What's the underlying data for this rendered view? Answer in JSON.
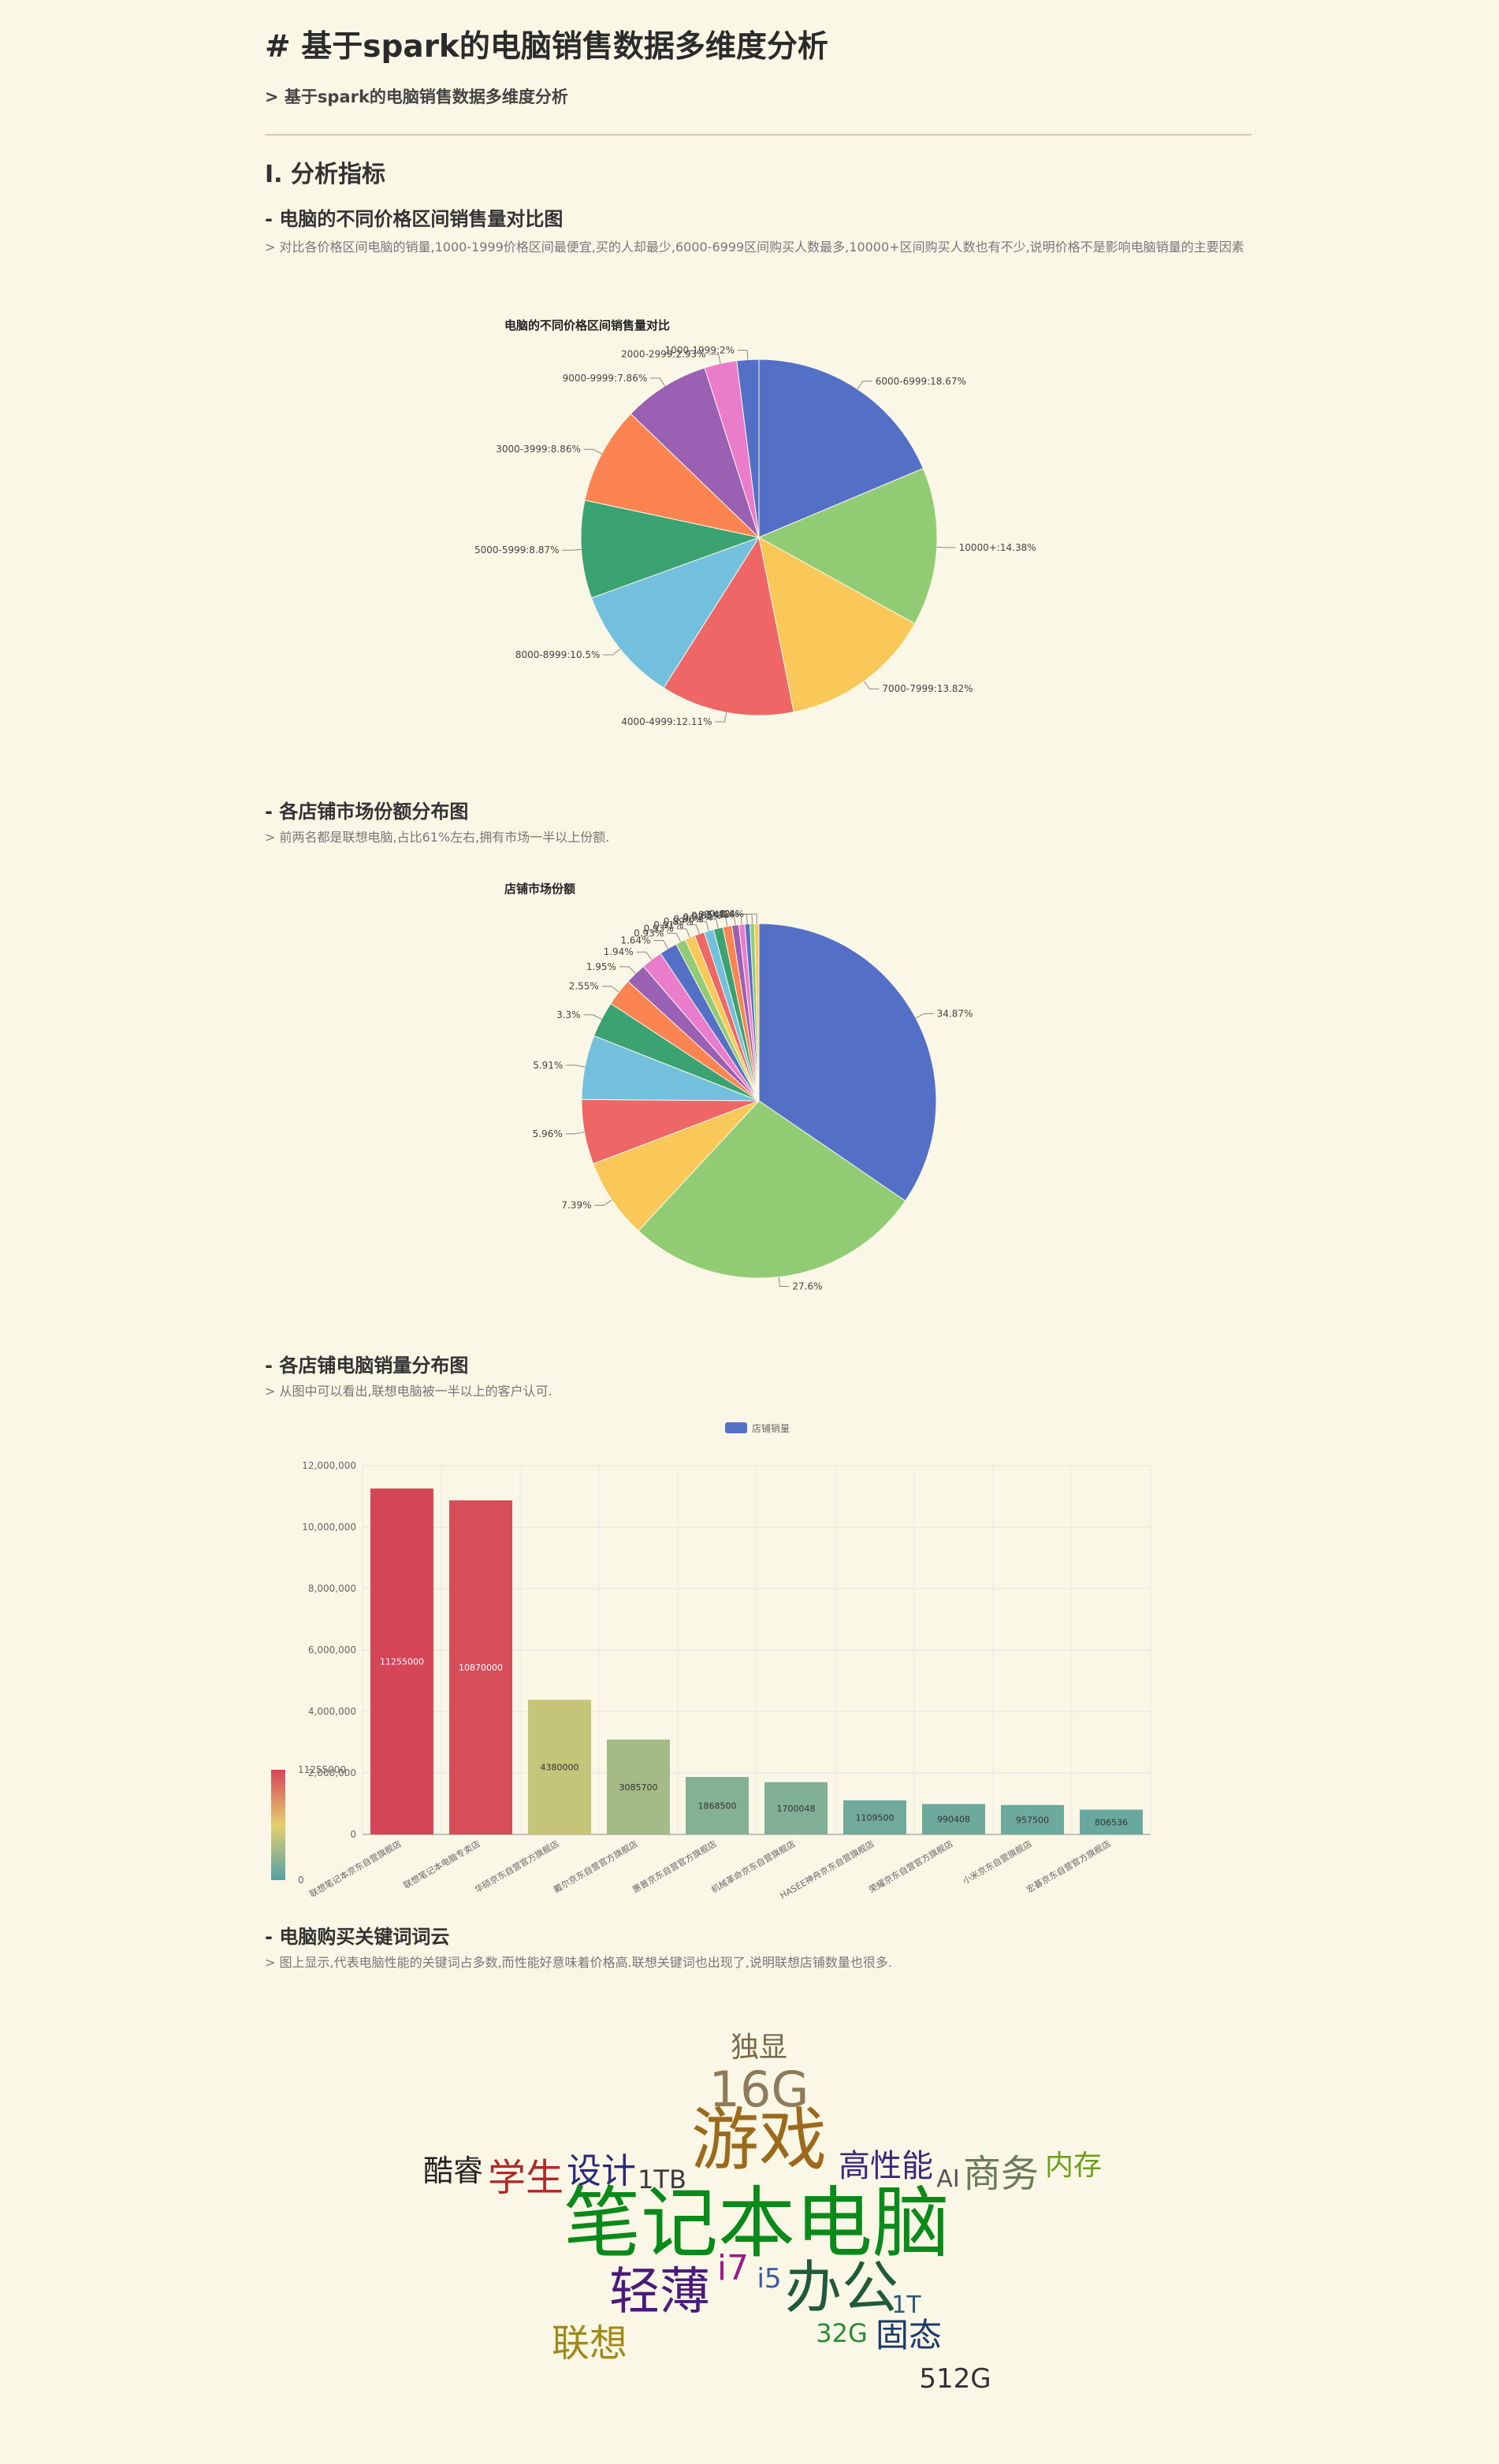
{
  "header": {
    "title": "# 基于spark的电脑销售数据多维度分析",
    "subtitle": "> 基于spark的电脑销售数据多维度分析"
  },
  "section1": {
    "heading": "I. 分析指标",
    "price_title": "- 电脑的不同价格区间销售量对比图",
    "price_note": "> 对比各价格区间电脑的销量,1000-1999价格区间最便宜,买的人却最少,6000-6999区间购买人数最多,10000+区间购买人数也有不少,说明价格不是影响电脑销量的主要因素",
    "share_title": "- 各店铺市场份额分布图",
    "share_note": "> 前两名都是联想电脑,占比61%左右,拥有市场一半以上份额.",
    "sales_title": "- 各店铺电脑销量分布图",
    "sales_note": "> 从图中可以看出,联想电脑被一半以上的客户认可.",
    "cloud_title": "- 电脑购买关键词词云",
    "cloud_note": "> 图上显示,代表电脑性能的关键词占多数,而性能好意味着价格高.联想关键词也出现了,说明联想店铺数量也很多."
  },
  "chart_data": [
    {
      "type": "pie",
      "title": "电脑的不同价格区间销售量对比",
      "slices": [
        {
          "label": "6000-6999",
          "value": 18.67,
          "color": "#5470c6"
        },
        {
          "label": "10000+",
          "value": 14.38,
          "color": "#91cc75"
        },
        {
          "label": "7000-7999",
          "value": 13.82,
          "color": "#fac858"
        },
        {
          "label": "4000-4999",
          "value": 12.11,
          "color": "#ee6666"
        },
        {
          "label": "8000-8999",
          "value": 10.5,
          "color": "#73c0de"
        },
        {
          "label": "5000-5999",
          "value": 8.87,
          "color": "#3ba272"
        },
        {
          "label": "3000-3999",
          "value": 8.86,
          "color": "#fc8452"
        },
        {
          "label": "9000-9999",
          "value": 7.86,
          "color": "#9a60b4"
        },
        {
          "label": "2000-2999",
          "value": 2.93,
          "color": "#ea7ccc"
        },
        {
          "label": "1000-1999",
          "value": 2,
          "color": "#5470c6"
        }
      ]
    },
    {
      "type": "pie",
      "title": "店铺市场份额",
      "slices": [
        {
          "label": "34.87%",
          "value": 34.87,
          "color": "#5470c6"
        },
        {
          "label": "27.6%",
          "value": 27.6,
          "color": "#91cc75"
        },
        {
          "label": "7.39%",
          "value": 7.39,
          "color": "#fac858"
        },
        {
          "label": "5.96%",
          "value": 5.96,
          "color": "#ee6666"
        },
        {
          "label": "5.91%",
          "value": 5.91,
          "color": "#73c0de"
        },
        {
          "label": "3.3%",
          "value": 3.3,
          "color": "#3ba272"
        },
        {
          "label": "2.55%",
          "value": 2.55,
          "color": "#fc8452"
        },
        {
          "label": "1.95%",
          "value": 1.95,
          "color": "#9a60b4"
        },
        {
          "label": "1.94%",
          "value": 1.94,
          "color": "#ea7ccc"
        },
        {
          "label": "1.64%",
          "value": 1.64,
          "color": "#5470c6"
        },
        {
          "label": "0.93%",
          "value": 0.93,
          "color": "#91cc75"
        },
        {
          "label": "0.93%",
          "value": 0.93,
          "color": "#fac858"
        },
        {
          "label": "0.91%",
          "value": 0.91,
          "color": "#ee6666"
        },
        {
          "label": "0.89%",
          "value": 0.89,
          "color": "#73c0de"
        },
        {
          "label": "0.86%",
          "value": 0.86,
          "color": "#3ba272"
        },
        {
          "label": "0.82%",
          "value": 0.82,
          "color": "#fc8452"
        },
        {
          "label": "0.65%",
          "value": 0.65,
          "color": "#9a60b4"
        },
        {
          "label": "0.54%",
          "value": 0.54,
          "color": "#ea7ccc"
        },
        {
          "label": "0.47%",
          "value": 0.47,
          "color": "#5470c6"
        },
        {
          "label": "0.42%",
          "value": 0.42,
          "color": "#91cc75"
        },
        {
          "label": "0.4%",
          "value": 0.4,
          "color": "#fac858"
        }
      ]
    },
    {
      "type": "bar",
      "legend": "店铺销量",
      "categories": [
        "联想笔记本京东自营旗舰店",
        "联想笔记本电脑专卖店",
        "华硕京东自营官方旗舰店",
        "戴尔京东自营官方旗舰店",
        "惠普京东自营官方旗舰店",
        "机械革命京东自营旗舰店",
        "HASEE神舟京东自营旗舰店",
        "荣耀京东自营官方旗舰店",
        "小米京东自营旗舰店",
        "宏碁京东自营官方旗舰店"
      ],
      "values": [
        11255000,
        10870000,
        4380000,
        3085700,
        1868500,
        1700048,
        1109500,
        990408,
        957500,
        806536
      ],
      "ylim": [
        0,
        12000000
      ],
      "yticks": [
        0,
        2000000,
        4000000,
        6000000,
        8000000,
        10000000,
        12000000
      ],
      "ytick_labels": [
        "0",
        "2,000,000",
        "4,000,000",
        "6,000,000",
        "8,000,000",
        "10,000,000",
        "12,000,000"
      ],
      "visualmap": {
        "min_label": "0",
        "max_label": "11255000"
      },
      "grid": true,
      "legend_position": "top-center"
    }
  ],
  "wordcloud": [
    {
      "text": "笔记本电脑",
      "color": "#0a8a1a"
    },
    {
      "text": "游戏",
      "color": "#9b6a1c"
    },
    {
      "text": "16G",
      "color": "#8f7a5a"
    },
    {
      "text": "轻薄",
      "color": "#4a1a7a"
    },
    {
      "text": "办公",
      "color": "#1f5a3a"
    },
    {
      "text": "独显",
      "color": "#7a6a4a"
    },
    {
      "text": "学生",
      "color": "#b02a2a"
    },
    {
      "text": "设计",
      "color": "#2a2a7a"
    },
    {
      "text": "酷睿",
      "color": "#222222"
    },
    {
      "text": "1TB",
      "color": "#3a3a3a"
    },
    {
      "text": "高性能",
      "color": "#3a2a7a"
    },
    {
      "text": "AI",
      "color": "#555555"
    },
    {
      "text": "商务",
      "color": "#6a7a5a"
    },
    {
      "text": "内存",
      "color": "#6aa01a"
    },
    {
      "text": "i7",
      "color": "#9a1a8a"
    },
    {
      "text": "i5",
      "color": "#3a5aa0"
    },
    {
      "text": "1T",
      "color": "#2a5a7a"
    },
    {
      "text": "32G",
      "color": "#2a8a3a"
    },
    {
      "text": "固态",
      "color": "#1a3a6a"
    },
    {
      "text": "联想",
      "color": "#a08a1a"
    },
    {
      "text": "512G",
      "color": "#333333"
    }
  ]
}
